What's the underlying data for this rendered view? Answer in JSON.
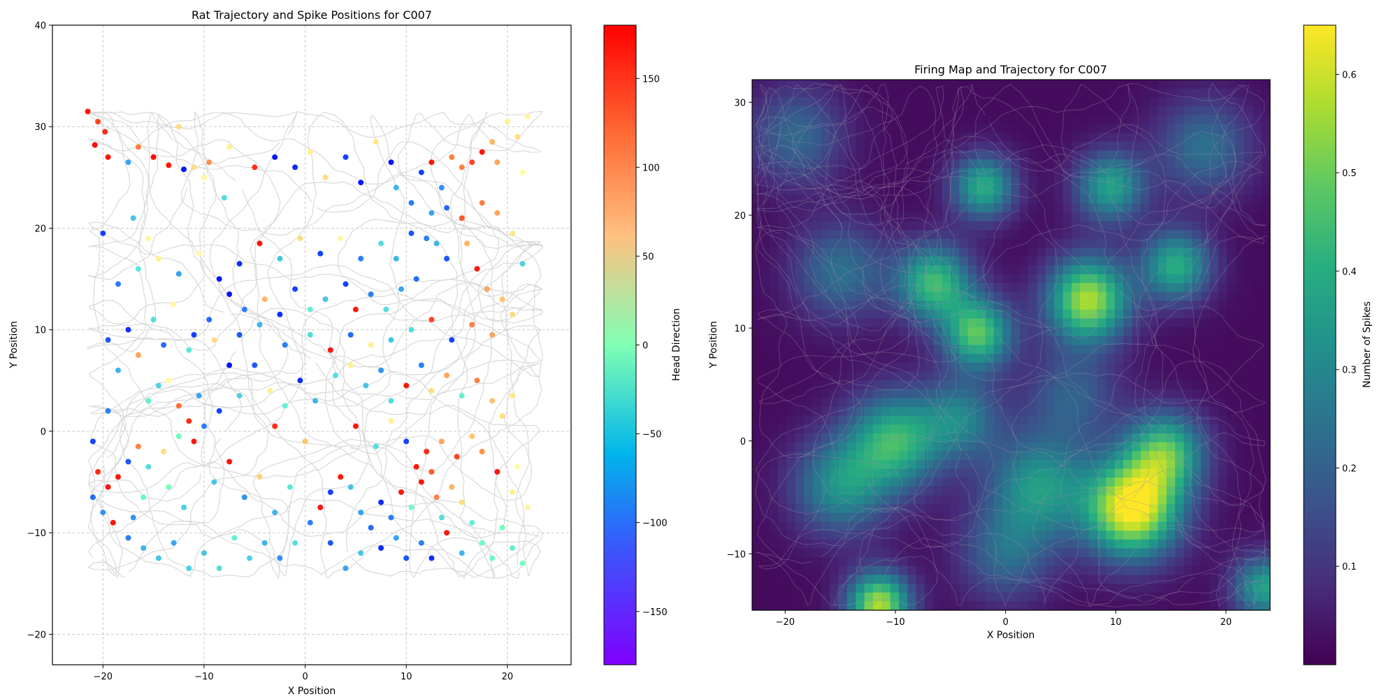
{
  "chart_data": [
    {
      "type": "scatter",
      "title": "Rat Trajectory and Spike Positions for  C007",
      "xlabel": "X Position",
      "ylabel": "Y Position",
      "xlim": [
        -25,
        26.3
      ],
      "ylim": [
        -23,
        40
      ],
      "xticks": [
        -20,
        -10,
        0,
        10,
        20
      ],
      "yticks": [
        -20,
        -10,
        0,
        10,
        20,
        30,
        40
      ],
      "grid": true,
      "arena": {
        "x": [
          -21.5,
          23.5
        ],
        "y": [
          -14.5,
          31.5
        ]
      },
      "trajectory_color": "#d9d9d9",
      "series": [
        {
          "values": "spikes colored by head direction",
          "colormap": "rainbow"
        }
      ],
      "spikes": [
        [
          -21.5,
          31.5,
          170
        ],
        [
          -20.5,
          30.5,
          150
        ],
        [
          -19.8,
          29.5,
          160
        ],
        [
          -20.8,
          28.2,
          175
        ],
        [
          -19.5,
          27.0,
          170
        ],
        [
          -17.5,
          26.5,
          -100
        ],
        [
          -16.5,
          28.0,
          120
        ],
        [
          -15.0,
          27.0,
          175
        ],
        [
          -13.5,
          26.2,
          170
        ],
        [
          -12.0,
          25.8,
          -170
        ],
        [
          -12.5,
          30.0,
          60
        ],
        [
          -11.0,
          26.0,
          60
        ],
        [
          -10.0,
          25.0,
          30
        ],
        [
          -8.0,
          23.0,
          -60
        ],
        [
          -9.5,
          26.5,
          110
        ],
        [
          -7.5,
          28.0,
          40
        ],
        [
          -5.0,
          26.0,
          160
        ],
        [
          -3.0,
          27.0,
          -170
        ],
        [
          -1.0,
          26.0,
          -160
        ],
        [
          0.5,
          27.5,
          40
        ],
        [
          2.0,
          25.0,
          60
        ],
        [
          4.0,
          27.0,
          -150
        ],
        [
          5.5,
          24.5,
          -170
        ],
        [
          7.0,
          28.5,
          50
        ],
        [
          8.5,
          26.5,
          -170
        ],
        [
          9.0,
          24.0,
          -90
        ],
        [
          10.5,
          22.5,
          -120
        ],
        [
          11.5,
          25.5,
          -150
        ],
        [
          12.5,
          26.5,
          170
        ],
        [
          13.5,
          24.0,
          -110
        ],
        [
          14.5,
          27.0,
          120
        ],
        [
          15.5,
          26.0,
          120
        ],
        [
          16.5,
          26.5,
          150
        ],
        [
          17.5,
          27.5,
          170
        ],
        [
          18.5,
          28.5,
          90
        ],
        [
          19.0,
          26.5,
          100
        ],
        [
          20.0,
          30.5,
          40
        ],
        [
          21.0,
          29.0,
          60
        ],
        [
          22.0,
          31.0,
          30
        ],
        [
          21.5,
          25.5,
          20
        ],
        [
          12.0,
          19.0,
          -120
        ],
        [
          13.0,
          18.5,
          -90
        ],
        [
          14.0,
          17.0,
          -140
        ],
        [
          16.0,
          18.5,
          90
        ],
        [
          17.0,
          16.0,
          170
        ],
        [
          18.0,
          14.0,
          100
        ],
        [
          19.5,
          13.0,
          80
        ],
        [
          11.0,
          15.0,
          -130
        ],
        [
          9.5,
          14.0,
          -100
        ],
        [
          8.0,
          12.0,
          -60
        ],
        [
          6.5,
          13.5,
          -120
        ],
        [
          5.0,
          12.0,
          170
        ],
        [
          4.0,
          14.5,
          -150
        ],
        [
          2.0,
          13.0,
          -80
        ],
        [
          0.5,
          12.0,
          -40
        ],
        [
          -1.0,
          14.0,
          -150
        ],
        [
          -2.5,
          11.5,
          -160
        ],
        [
          -4.0,
          13.0,
          90
        ],
        [
          -6.0,
          12.0,
          -120
        ],
        [
          -7.5,
          13.5,
          -170
        ],
        [
          -9.5,
          11.0,
          -130
        ],
        [
          -11.0,
          9.5,
          -150
        ],
        [
          -13.0,
          12.5,
          30
        ],
        [
          -15.0,
          11.0,
          -60
        ],
        [
          -17.5,
          10.0,
          -160
        ],
        [
          -19.5,
          9.0,
          -140
        ],
        [
          -18.5,
          14.5,
          -120
        ],
        [
          -20.0,
          19.5,
          -150
        ],
        [
          -17.0,
          21.0,
          -80
        ],
        [
          -15.5,
          19.0,
          30
        ],
        [
          -14.5,
          4.5,
          -70
        ],
        [
          -15.5,
          3.0,
          -40
        ],
        [
          -13.5,
          5.0,
          20
        ],
        [
          -12.5,
          2.5,
          130
        ],
        [
          -11.5,
          1.0,
          160
        ],
        [
          -10.5,
          3.5,
          -100
        ],
        [
          -10.0,
          0.5,
          -120
        ],
        [
          -11.0,
          -1.0,
          170
        ],
        [
          -12.5,
          -0.5,
          -20
        ],
        [
          -14.0,
          -2.0,
          60
        ],
        [
          -15.5,
          -3.5,
          -60
        ],
        [
          -16.5,
          -1.5,
          120
        ],
        [
          -17.5,
          -3.0,
          -140
        ],
        [
          -18.5,
          -4.5,
          170
        ],
        [
          -19.5,
          -5.5,
          170
        ],
        [
          -20.5,
          -4.0,
          160
        ],
        [
          -21.0,
          -6.5,
          -130
        ],
        [
          -20.0,
          -8.0,
          -110
        ],
        [
          -19.0,
          -9.0,
          170
        ],
        [
          -17.5,
          -10.5,
          -120
        ],
        [
          -16.0,
          -11.5,
          -90
        ],
        [
          -14.5,
          -12.5,
          -80
        ],
        [
          -13.0,
          -11.0,
          -100
        ],
        [
          -11.5,
          -13.5,
          -70
        ],
        [
          -10.0,
          -12.0,
          -80
        ],
        [
          -8.5,
          -13.5,
          -60
        ],
        [
          -7.0,
          -10.5,
          -40
        ],
        [
          -5.5,
          -12.5,
          -70
        ],
        [
          -4.0,
          -11.0,
          -90
        ],
        [
          -2.5,
          -12.5,
          -110
        ],
        [
          -1.0,
          -11.0,
          -60
        ],
        [
          0.5,
          -9.0,
          -120
        ],
        [
          1.5,
          -7.5,
          170
        ],
        [
          2.5,
          -6.0,
          -150
        ],
        [
          3.5,
          -4.5,
          170
        ],
        [
          4.5,
          -5.5,
          -80
        ],
        [
          5.5,
          -8.0,
          -100
        ],
        [
          6.5,
          -9.5,
          -130
        ],
        [
          7.5,
          -7.0,
          -160
        ],
        [
          8.5,
          -8.5,
          -120
        ],
        [
          9.5,
          -6.0,
          170
        ],
        [
          10.5,
          -7.5,
          -20
        ],
        [
          11.5,
          -5.0,
          170
        ],
        [
          12.5,
          -4.0,
          140
        ],
        [
          13.0,
          -6.5,
          120
        ],
        [
          13.5,
          -8.5,
          -60
        ],
        [
          14.5,
          -5.5,
          90
        ],
        [
          15.5,
          -7.0,
          60
        ],
        [
          16.5,
          -9.0,
          -40
        ],
        [
          17.5,
          -11.0,
          -20
        ],
        [
          18.5,
          -12.5,
          -30
        ],
        [
          19.5,
          -9.5,
          -10
        ],
        [
          20.5,
          -11.5,
          -40
        ],
        [
          21.5,
          -13.0,
          -10
        ],
        [
          22.0,
          -7.5,
          30
        ],
        [
          20.5,
          -6.0,
          40
        ],
        [
          21.0,
          -3.5,
          20
        ],
        [
          19.0,
          -4.0,
          170
        ],
        [
          17.5,
          -2.0,
          110
        ],
        [
          16.5,
          -0.5,
          80
        ],
        [
          15.0,
          -2.5,
          150
        ],
        [
          13.5,
          -1.0,
          100
        ],
        [
          12.0,
          -2.0,
          160
        ],
        [
          11.0,
          -3.5,
          170
        ],
        [
          10.0,
          -1.0,
          -150
        ],
        [
          11.5,
          -11.0,
          -120
        ],
        [
          12.5,
          -12.5,
          -160
        ],
        [
          14.0,
          -10.0,
          170
        ],
        [
          15.5,
          -12.0,
          -90
        ],
        [
          10.0,
          -12.5,
          -140
        ],
        [
          9.0,
          -10.5,
          -100
        ],
        [
          7.5,
          -11.5,
          -160
        ],
        [
          5.5,
          -12.0,
          -80
        ],
        [
          4.0,
          -13.5,
          -100
        ],
        [
          2.5,
          -11.0,
          -140
        ],
        [
          3.0,
          5.5,
          -60
        ],
        [
          4.5,
          6.5,
          40
        ],
        [
          6.0,
          4.5,
          -80
        ],
        [
          7.5,
          6.0,
          -110
        ],
        [
          8.5,
          3.0,
          -60
        ],
        [
          10.0,
          4.5,
          170
        ],
        [
          11.5,
          6.5,
          -120
        ],
        [
          12.5,
          4.0,
          60
        ],
        [
          14.0,
          5.5,
          100
        ],
        [
          15.5,
          3.5,
          -40
        ],
        [
          17.0,
          5.0,
          120
        ],
        [
          18.5,
          3.0,
          80
        ],
        [
          19.5,
          1.5,
          60
        ],
        [
          20.5,
          3.5,
          50
        ],
        [
          1.0,
          3.0,
          -90
        ],
        [
          -0.5,
          5.0,
          -160
        ],
        [
          -2.0,
          2.5,
          -40
        ],
        [
          -3.5,
          4.0,
          40
        ],
        [
          -5.0,
          6.5,
          -140
        ],
        [
          -6.5,
          3.5,
          -70
        ],
        [
          -7.5,
          6.5,
          -170
        ],
        [
          -8.5,
          2.0,
          -150
        ],
        [
          -3.0,
          0.5,
          160
        ],
        [
          0.0,
          -1.0,
          80
        ],
        [
          5.0,
          0.5,
          170
        ],
        [
          7.0,
          -1.5,
          -60
        ],
        [
          8.5,
          1.0,
          40
        ],
        [
          -9.0,
          -5.0,
          -80
        ],
        [
          -7.5,
          -3.0,
          170
        ],
        [
          -6.0,
          -6.5,
          -110
        ],
        [
          -4.5,
          -4.5,
          70
        ],
        [
          -3.0,
          -8.0,
          -90
        ],
        [
          -1.5,
          -5.5,
          -50
        ],
        [
          -12.0,
          -7.5,
          -70
        ],
        [
          -13.5,
          -5.5,
          -10
        ],
        [
          -16.0,
          -6.5,
          -30
        ],
        [
          -17.0,
          -8.5,
          -110
        ],
        [
          -18.5,
          6.0,
          -90
        ],
        [
          -19.5,
          2.0,
          -120
        ],
        [
          -21.0,
          -1.0,
          -150
        ],
        [
          -16.5,
          7.5,
          100
        ],
        [
          -14.0,
          8.5,
          -130
        ],
        [
          -11.5,
          8.0,
          -50
        ],
        [
          -9.0,
          9.0,
          60
        ],
        [
          -6.5,
          9.5,
          -140
        ],
        [
          -4.5,
          10.5,
          -90
        ],
        [
          -2.0,
          8.5,
          -120
        ],
        [
          0.5,
          9.5,
          -60
        ],
        [
          2.5,
          8.0,
          170
        ],
        [
          4.5,
          9.5,
          -130
        ],
        [
          6.5,
          8.5,
          40
        ],
        [
          8.5,
          9.0,
          -80
        ],
        [
          10.5,
          10.0,
          -60
        ],
        [
          12.5,
          11.0,
          150
        ],
        [
          14.5,
          9.0,
          -150
        ],
        [
          16.5,
          10.5,
          120
        ],
        [
          18.5,
          9.5,
          100
        ],
        [
          20.5,
          11.5,
          60
        ],
        [
          21.5,
          16.5,
          -70
        ],
        [
          20.5,
          19.5,
          50
        ],
        [
          19.0,
          21.5,
          100
        ],
        [
          17.5,
          22.5,
          120
        ],
        [
          15.5,
          21.0,
          140
        ],
        [
          14.0,
          22.0,
          -130
        ],
        [
          12.5,
          21.5,
          -100
        ],
        [
          10.5,
          19.5,
          -140
        ],
        [
          9.0,
          17.0,
          -90
        ],
        [
          7.5,
          18.5,
          -60
        ],
        [
          5.5,
          17.0,
          -120
        ],
        [
          3.5,
          19.0,
          30
        ],
        [
          1.5,
          17.5,
          -150
        ],
        [
          -0.5,
          19.0,
          60
        ],
        [
          -2.5,
          17.0,
          -80
        ],
        [
          -4.5,
          18.5,
          170
        ],
        [
          -6.5,
          16.5,
          -160
        ],
        [
          -8.5,
          15.0,
          -170
        ],
        [
          -10.5,
          17.5,
          20
        ],
        [
          -12.5,
          15.5,
          -100
        ],
        [
          -14.5,
          17.0,
          40
        ],
        [
          -16.5,
          16.0,
          -50
        ]
      ]
    },
    {
      "type": "heatmap",
      "title": "Firing Map and Trajectory for  C007",
      "xlabel": "X Position",
      "ylabel": "Y Position",
      "xlim": [
        -23,
        24
      ],
      "ylim": [
        -15,
        32
      ],
      "xticks": [
        -20,
        -10,
        0,
        10,
        20
      ],
      "yticks": [
        -10,
        0,
        10,
        20,
        30
      ],
      "grid": false,
      "trajectory_color": "#9a8fa8",
      "colorbar_label": "Number of Spikes",
      "colorbar_ticks": [
        0.1,
        0.2,
        0.3,
        0.4,
        0.5,
        0.6
      ],
      "colorbar_range": [
        0.0,
        0.65
      ],
      "firing_peaks": [
        [
          11.5,
          -6.0,
          0.65,
          3.0
        ],
        [
          14.5,
          -1.0,
          0.42,
          2.5
        ],
        [
          7.5,
          12.5,
          0.55,
          2.6
        ],
        [
          -6.5,
          14.0,
          0.42,
          2.4
        ],
        [
          -2.5,
          9.5,
          0.45,
          2.2
        ],
        [
          -11.5,
          -14.5,
          0.55,
          2.0
        ],
        [
          -2.0,
          22.5,
          0.38,
          2.0
        ],
        [
          9.5,
          22.5,
          0.35,
          2.2
        ],
        [
          15.5,
          15.5,
          0.38,
          2.2
        ],
        [
          -10.0,
          0.0,
          0.4,
          3.0
        ],
        [
          -15.0,
          -4.0,
          0.3,
          3.0
        ],
        [
          3.0,
          -4.0,
          0.32,
          3.2
        ],
        [
          -4.0,
          2.0,
          0.25,
          2.5
        ],
        [
          23.5,
          -13.0,
          0.35,
          2.0
        ],
        [
          -19.0,
          27.0,
          0.2,
          3.0
        ],
        [
          18.0,
          26.0,
          0.22,
          3.0
        ],
        [
          -15.0,
          15.0,
          0.22,
          3.0
        ],
        [
          0.0,
          -10.0,
          0.2,
          3.0
        ],
        [
          6.0,
          4.0,
          0.18,
          3.0
        ]
      ]
    }
  ],
  "left_colorbar": {
    "label": "Head Direction",
    "ticks": [
      150,
      100,
      50,
      0,
      -50,
      -100,
      -150
    ],
    "range": [
      -180,
      180
    ],
    "colormap": "rainbow"
  }
}
